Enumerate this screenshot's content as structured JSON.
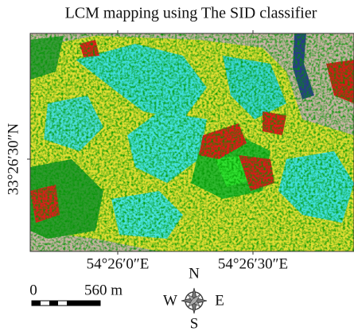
{
  "title": "LCM mapping using The SID classifier",
  "axes": {
    "y_label": "33°26′30″N",
    "x_labels": [
      "54°26′0″E",
      "54°26′30″E"
    ]
  },
  "scale_bar": {
    "start": "0",
    "end": "560 m"
  },
  "compass": {
    "n": "N",
    "e": "E",
    "s": "S",
    "w": "W"
  }
}
